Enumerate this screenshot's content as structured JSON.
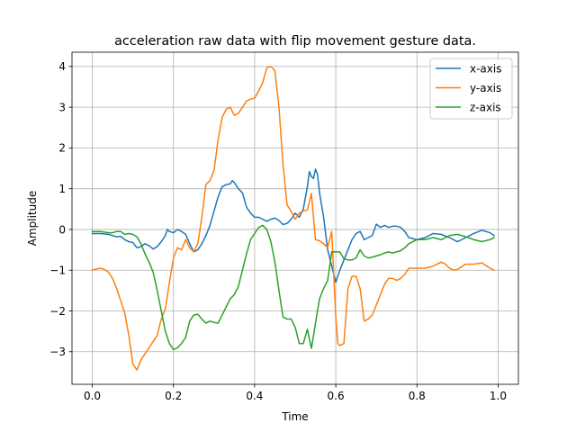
{
  "chart_data": {
    "type": "line",
    "title": "acceleration raw data with flip movement gesture data.",
    "xlabel": "Time",
    "ylabel": "Amplitude",
    "xlim": [
      -0.05,
      1.05
    ],
    "ylim": [
      -3.8,
      4.35
    ],
    "xticks": [
      0.0,
      0.2,
      0.4,
      0.6,
      0.8,
      1.0
    ],
    "xtick_labels": [
      "0.0",
      "0.2",
      "0.4",
      "0.6",
      "0.8",
      "1.0"
    ],
    "yticks": [
      -3,
      -2,
      -1,
      0,
      1,
      2,
      3,
      4
    ],
    "ytick_labels": [
      "−3",
      "−2",
      "−1",
      "0",
      "1",
      "2",
      "3",
      "4"
    ],
    "grid": true,
    "legend_position": "upper-right",
    "series": [
      {
        "name": "x-axis",
        "color": "#1f77b4",
        "points": [
          [
            0.0,
            -0.1
          ],
          [
            0.02,
            -0.1
          ],
          [
            0.04,
            -0.12
          ],
          [
            0.05,
            -0.15
          ],
          [
            0.06,
            -0.18
          ],
          [
            0.07,
            -0.17
          ],
          [
            0.08,
            -0.25
          ],
          [
            0.09,
            -0.3
          ],
          [
            0.1,
            -0.32
          ],
          [
            0.11,
            -0.45
          ],
          [
            0.12,
            -0.42
          ],
          [
            0.13,
            -0.35
          ],
          [
            0.14,
            -0.4
          ],
          [
            0.15,
            -0.48
          ],
          [
            0.16,
            -0.42
          ],
          [
            0.17,
            -0.3
          ],
          [
            0.18,
            -0.15
          ],
          [
            0.185,
            0.0
          ],
          [
            0.19,
            -0.05
          ],
          [
            0.2,
            -0.08
          ],
          [
            0.21,
            0.0
          ],
          [
            0.22,
            -0.05
          ],
          [
            0.23,
            -0.12
          ],
          [
            0.24,
            -0.35
          ],
          [
            0.25,
            -0.55
          ],
          [
            0.26,
            -0.5
          ],
          [
            0.27,
            -0.35
          ],
          [
            0.28,
            -0.15
          ],
          [
            0.29,
            0.1
          ],
          [
            0.3,
            0.45
          ],
          [
            0.31,
            0.8
          ],
          [
            0.32,
            1.05
          ],
          [
            0.33,
            1.1
          ],
          [
            0.34,
            1.12
          ],
          [
            0.345,
            1.2
          ],
          [
            0.35,
            1.15
          ],
          [
            0.36,
            1.0
          ],
          [
            0.37,
            0.9
          ],
          [
            0.38,
            0.55
          ],
          [
            0.39,
            0.4
          ],
          [
            0.4,
            0.3
          ],
          [
            0.41,
            0.3
          ],
          [
            0.42,
            0.25
          ],
          [
            0.43,
            0.2
          ],
          [
            0.44,
            0.25
          ],
          [
            0.45,
            0.28
          ],
          [
            0.46,
            0.22
          ],
          [
            0.47,
            0.12
          ],
          [
            0.48,
            0.15
          ],
          [
            0.49,
            0.25
          ],
          [
            0.5,
            0.4
          ],
          [
            0.51,
            0.3
          ],
          [
            0.52,
            0.5
          ],
          [
            0.53,
            1.05
          ],
          [
            0.535,
            1.42
          ],
          [
            0.54,
            1.3
          ],
          [
            0.545,
            1.25
          ],
          [
            0.55,
            1.48
          ],
          [
            0.555,
            1.35
          ],
          [
            0.56,
            0.9
          ],
          [
            0.57,
            0.3
          ],
          [
            0.58,
            -0.5
          ],
          [
            0.59,
            -0.9
          ],
          [
            0.6,
            -1.3
          ],
          [
            0.61,
            -1.0
          ],
          [
            0.62,
            -0.75
          ],
          [
            0.63,
            -0.5
          ],
          [
            0.64,
            -0.25
          ],
          [
            0.65,
            -0.1
          ],
          [
            0.66,
            -0.05
          ],
          [
            0.67,
            -0.25
          ],
          [
            0.68,
            -0.2
          ],
          [
            0.69,
            -0.15
          ],
          [
            0.7,
            0.13
          ],
          [
            0.71,
            0.05
          ],
          [
            0.72,
            0.1
          ],
          [
            0.73,
            0.05
          ],
          [
            0.74,
            0.08
          ],
          [
            0.75,
            0.08
          ],
          [
            0.76,
            0.05
          ],
          [
            0.77,
            -0.05
          ],
          [
            0.78,
            -0.2
          ],
          [
            0.8,
            -0.25
          ],
          [
            0.82,
            -0.2
          ],
          [
            0.84,
            -0.1
          ],
          [
            0.86,
            -0.12
          ],
          [
            0.88,
            -0.2
          ],
          [
            0.9,
            -0.3
          ],
          [
            0.92,
            -0.2
          ],
          [
            0.94,
            -0.1
          ],
          [
            0.96,
            -0.02
          ],
          [
            0.98,
            -0.08
          ],
          [
            0.99,
            -0.15
          ]
        ]
      },
      {
        "name": "y-axis",
        "color": "#ff7f0e",
        "points": [
          [
            0.0,
            -1.0
          ],
          [
            0.01,
            -0.97
          ],
          [
            0.02,
            -0.95
          ],
          [
            0.03,
            -0.98
          ],
          [
            0.04,
            -1.05
          ],
          [
            0.05,
            -1.2
          ],
          [
            0.06,
            -1.45
          ],
          [
            0.07,
            -1.75
          ],
          [
            0.08,
            -2.05
          ],
          [
            0.09,
            -2.6
          ],
          [
            0.1,
            -3.3
          ],
          [
            0.11,
            -3.45
          ],
          [
            0.12,
            -3.2
          ],
          [
            0.13,
            -3.05
          ],
          [
            0.14,
            -2.9
          ],
          [
            0.15,
            -2.75
          ],
          [
            0.16,
            -2.6
          ],
          [
            0.17,
            -2.2
          ],
          [
            0.18,
            -1.95
          ],
          [
            0.19,
            -1.3
          ],
          [
            0.2,
            -0.7
          ],
          [
            0.21,
            -0.45
          ],
          [
            0.22,
            -0.5
          ],
          [
            0.23,
            -0.25
          ],
          [
            0.24,
            -0.45
          ],
          [
            0.25,
            -0.55
          ],
          [
            0.26,
            -0.35
          ],
          [
            0.27,
            0.3
          ],
          [
            0.28,
            1.1
          ],
          [
            0.29,
            1.2
          ],
          [
            0.3,
            1.45
          ],
          [
            0.31,
            2.2
          ],
          [
            0.32,
            2.75
          ],
          [
            0.33,
            2.95
          ],
          [
            0.34,
            3.0
          ],
          [
            0.35,
            2.8
          ],
          [
            0.36,
            2.85
          ],
          [
            0.37,
            3.0
          ],
          [
            0.38,
            3.15
          ],
          [
            0.39,
            3.2
          ],
          [
            0.4,
            3.22
          ],
          [
            0.41,
            3.4
          ],
          [
            0.42,
            3.6
          ],
          [
            0.43,
            3.97
          ],
          [
            0.44,
            4.0
          ],
          [
            0.45,
            3.9
          ],
          [
            0.46,
            3.0
          ],
          [
            0.47,
            1.6
          ],
          [
            0.48,
            0.6
          ],
          [
            0.49,
            0.45
          ],
          [
            0.5,
            0.25
          ],
          [
            0.51,
            0.4
          ],
          [
            0.52,
            0.45
          ],
          [
            0.53,
            0.48
          ],
          [
            0.54,
            0.88
          ],
          [
            0.545,
            0.3
          ],
          [
            0.55,
            -0.25
          ],
          [
            0.56,
            -0.28
          ],
          [
            0.57,
            -0.35
          ],
          [
            0.58,
            -0.45
          ],
          [
            0.59,
            -0.05
          ],
          [
            0.6,
            -2.15
          ],
          [
            0.605,
            -2.8
          ],
          [
            0.61,
            -2.85
          ],
          [
            0.62,
            -2.8
          ],
          [
            0.63,
            -1.45
          ],
          [
            0.64,
            -1.15
          ],
          [
            0.65,
            -1.15
          ],
          [
            0.66,
            -1.45
          ],
          [
            0.67,
            -2.25
          ],
          [
            0.68,
            -2.2
          ],
          [
            0.69,
            -2.1
          ],
          [
            0.7,
            -1.85
          ],
          [
            0.71,
            -1.6
          ],
          [
            0.72,
            -1.35
          ],
          [
            0.73,
            -1.2
          ],
          [
            0.74,
            -1.2
          ],
          [
            0.75,
            -1.25
          ],
          [
            0.76,
            -1.2
          ],
          [
            0.77,
            -1.1
          ],
          [
            0.78,
            -0.95
          ],
          [
            0.8,
            -0.95
          ],
          [
            0.82,
            -0.95
          ],
          [
            0.84,
            -0.9
          ],
          [
            0.86,
            -0.8
          ],
          [
            0.87,
            -0.85
          ],
          [
            0.88,
            -0.95
          ],
          [
            0.89,
            -1.0
          ],
          [
            0.9,
            -0.98
          ],
          [
            0.92,
            -0.85
          ],
          [
            0.94,
            -0.85
          ],
          [
            0.96,
            -0.82
          ],
          [
            0.98,
            -0.95
          ],
          [
            0.99,
            -1.0
          ]
        ]
      },
      {
        "name": "z-axis",
        "color": "#2ca02c",
        "points": [
          [
            0.0,
            -0.05
          ],
          [
            0.02,
            -0.05
          ],
          [
            0.04,
            -0.08
          ],
          [
            0.05,
            -0.08
          ],
          [
            0.06,
            -0.05
          ],
          [
            0.07,
            -0.05
          ],
          [
            0.08,
            -0.12
          ],
          [
            0.09,
            -0.1
          ],
          [
            0.1,
            -0.12
          ],
          [
            0.11,
            -0.18
          ],
          [
            0.12,
            -0.35
          ],
          [
            0.13,
            -0.6
          ],
          [
            0.14,
            -0.8
          ],
          [
            0.15,
            -1.05
          ],
          [
            0.16,
            -1.5
          ],
          [
            0.17,
            -2.0
          ],
          [
            0.18,
            -2.5
          ],
          [
            0.19,
            -2.8
          ],
          [
            0.2,
            -2.95
          ],
          [
            0.21,
            -2.9
          ],
          [
            0.22,
            -2.8
          ],
          [
            0.23,
            -2.65
          ],
          [
            0.24,
            -2.25
          ],
          [
            0.25,
            -2.1
          ],
          [
            0.26,
            -2.08
          ],
          [
            0.27,
            -2.2
          ],
          [
            0.28,
            -2.3
          ],
          [
            0.29,
            -2.25
          ],
          [
            0.3,
            -2.28
          ],
          [
            0.31,
            -2.3
          ],
          [
            0.32,
            -2.1
          ],
          [
            0.33,
            -1.9
          ],
          [
            0.34,
            -1.7
          ],
          [
            0.35,
            -1.6
          ],
          [
            0.36,
            -1.4
          ],
          [
            0.37,
            -1.0
          ],
          [
            0.38,
            -0.6
          ],
          [
            0.39,
            -0.25
          ],
          [
            0.4,
            -0.1
          ],
          [
            0.41,
            0.05
          ],
          [
            0.42,
            0.1
          ],
          [
            0.43,
            0.0
          ],
          [
            0.44,
            -0.3
          ],
          [
            0.45,
            -0.8
          ],
          [
            0.46,
            -1.5
          ],
          [
            0.47,
            -2.15
          ],
          [
            0.48,
            -2.2
          ],
          [
            0.49,
            -2.2
          ],
          [
            0.5,
            -2.4
          ],
          [
            0.51,
            -2.8
          ],
          [
            0.52,
            -2.8
          ],
          [
            0.53,
            -2.45
          ],
          [
            0.54,
            -2.92
          ],
          [
            0.55,
            -2.3
          ],
          [
            0.56,
            -1.7
          ],
          [
            0.57,
            -1.45
          ],
          [
            0.58,
            -1.25
          ],
          [
            0.59,
            -0.55
          ],
          [
            0.6,
            -0.55
          ],
          [
            0.61,
            -0.55
          ],
          [
            0.62,
            -0.72
          ],
          [
            0.63,
            -0.75
          ],
          [
            0.64,
            -0.75
          ],
          [
            0.65,
            -0.7
          ],
          [
            0.66,
            -0.5
          ],
          [
            0.67,
            -0.65
          ],
          [
            0.68,
            -0.7
          ],
          [
            0.69,
            -0.68
          ],
          [
            0.7,
            -0.65
          ],
          [
            0.71,
            -0.62
          ],
          [
            0.72,
            -0.58
          ],
          [
            0.73,
            -0.55
          ],
          [
            0.74,
            -0.58
          ],
          [
            0.75,
            -0.55
          ],
          [
            0.76,
            -0.52
          ],
          [
            0.77,
            -0.45
          ],
          [
            0.78,
            -0.35
          ],
          [
            0.8,
            -0.25
          ],
          [
            0.82,
            -0.25
          ],
          [
            0.84,
            -0.2
          ],
          [
            0.86,
            -0.25
          ],
          [
            0.88,
            -0.15
          ],
          [
            0.9,
            -0.12
          ],
          [
            0.92,
            -0.18
          ],
          [
            0.94,
            -0.25
          ],
          [
            0.96,
            -0.3
          ],
          [
            0.98,
            -0.25
          ],
          [
            0.99,
            -0.2
          ]
        ]
      }
    ]
  }
}
